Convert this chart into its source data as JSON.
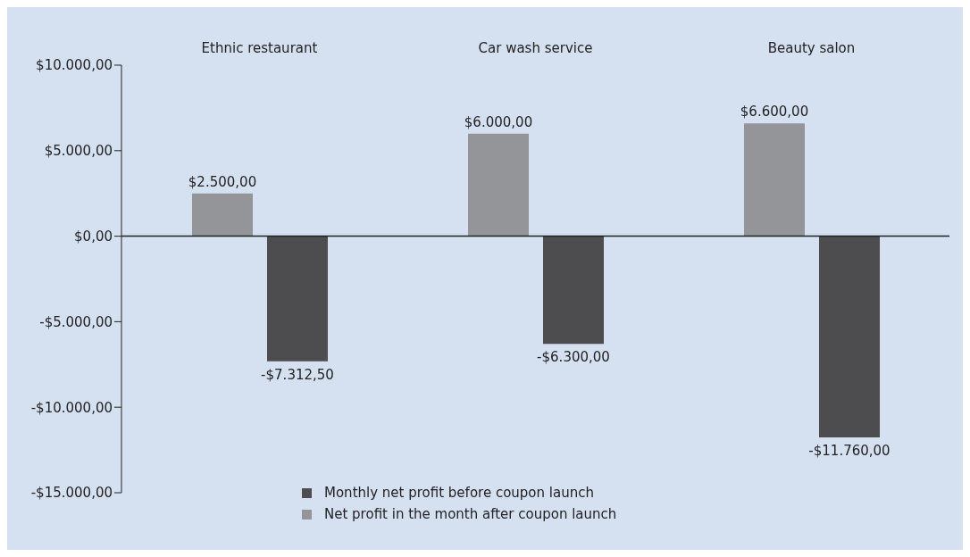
{
  "chart_data": {
    "type": "bar",
    "categories": [
      "Ethnic restaurant",
      "Car wash service",
      "Beauty salon"
    ],
    "series": [
      {
        "name": "Net profit in the month after coupon launch",
        "color": "#939598",
        "values": [
          2500,
          6000,
          6600
        ],
        "value_labels": [
          "$2.500,00",
          "$6.000,00",
          "$6.600,00"
        ]
      },
      {
        "name": "Monthly net profit before coupon launch",
        "color": "#4d4d4f",
        "values": [
          -7312.5,
          -6300,
          -11760
        ],
        "value_labels": [
          "-$7.312,50",
          "-$6.300,00",
          "-$11.760,00"
        ]
      }
    ],
    "ylim": [
      -15000,
      10000
    ],
    "yticks": [
      {
        "value": -15000,
        "label": "-$15.000,00"
      },
      {
        "value": -10000,
        "label": "-$10.000,00"
      },
      {
        "value": -5000,
        "label": "-$5.000,00"
      },
      {
        "value": 0,
        "label": "$0,00"
      },
      {
        "value": 5000,
        "label": "$5.000,00"
      },
      {
        "value": 10000,
        "label": "$10.000,00"
      }
    ],
    "legend": "bottom"
  }
}
